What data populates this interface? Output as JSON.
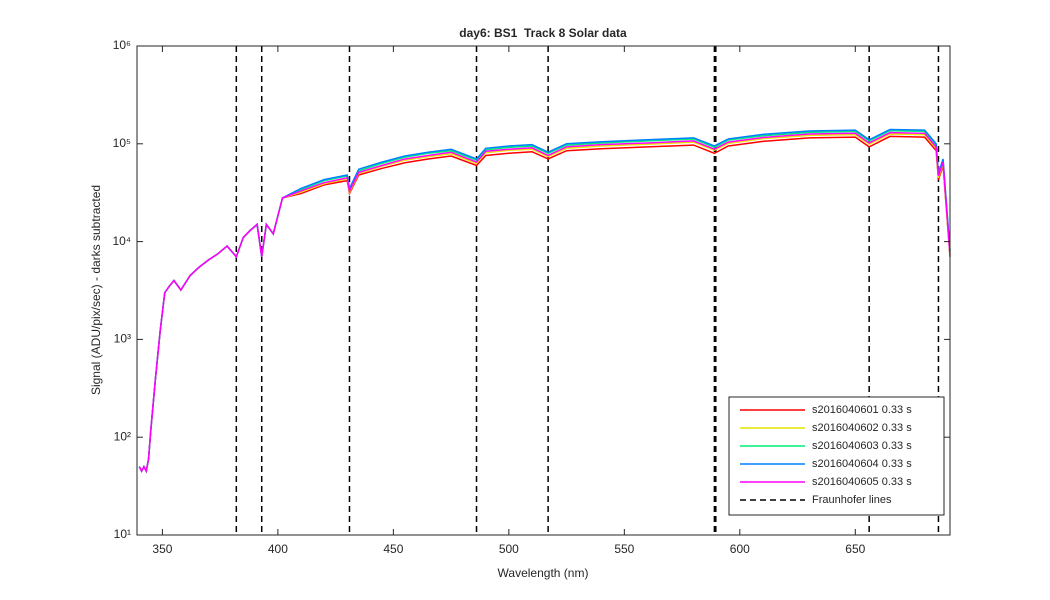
{
  "chart_data": {
    "type": "line",
    "title": "day6: BS1  Track 8 Solar data",
    "xlabel": "Wavelength (nm)",
    "ylabel": "Signal (ADU/pix/sec) - darks subtracted",
    "x": [
      340,
      341,
      342,
      343,
      344,
      345,
      347,
      349,
      351,
      353,
      355,
      358,
      362,
      366,
      370,
      374,
      378,
      382,
      385,
      388,
      391,
      393,
      395,
      398,
      402,
      410,
      420,
      430,
      431,
      435,
      445,
      455,
      465,
      475,
      486,
      490,
      500,
      510,
      517,
      525,
      540,
      560,
      580,
      589,
      595,
      610,
      630,
      650,
      656,
      665,
      680,
      685,
      686,
      688,
      691
    ],
    "series": [
      {
        "name": "s2016040601 0.33 s",
        "color": "#ff0000",
        "values": [
          50,
          45,
          50,
          45,
          60,
          120,
          400,
          1200,
          3000,
          3500,
          4000,
          3200,
          4500,
          5500,
          6500,
          7500,
          9000,
          7000,
          11000,
          13000,
          15000,
          7000,
          15000,
          12000,
          28000,
          31000,
          38000,
          42000,
          31000,
          48000,
          56000,
          64000,
          70000,
          75000,
          60000,
          76000,
          80000,
          83000,
          70000,
          85000,
          89000,
          93000,
          97000,
          80000,
          95000,
          106000,
          115000,
          117000,
          93000,
          119000,
          117000,
          85000,
          43000,
          60000,
          7000
        ]
      },
      {
        "name": "s2016040602 0.33 s",
        "color": "#e6e600",
        "values": [
          50,
          45,
          50,
          45,
          60,
          120,
          400,
          1200,
          3000,
          3500,
          4000,
          3200,
          4500,
          5500,
          6500,
          7500,
          9000,
          7000,
          11000,
          13000,
          15000,
          7000,
          15000,
          12000,
          28000,
          32000,
          39000,
          44000,
          32000,
          50000,
          59000,
          68000,
          74000,
          79000,
          63000,
          81000,
          86000,
          88000,
          74000,
          90000,
          95000,
          99000,
          104000,
          86000,
          101000,
          113000,
          122000,
          124000,
          99000,
          126000,
          124000,
          90000,
          45000,
          63000,
          7200
        ]
      },
      {
        "name": "s2016040603 0.33 s",
        "color": "#00ee77",
        "values": [
          50,
          45,
          50,
          45,
          60,
          120,
          400,
          1200,
          3000,
          3500,
          4000,
          3200,
          4500,
          5500,
          6500,
          7500,
          9000,
          7000,
          11000,
          13000,
          15000,
          7000,
          15000,
          12000,
          28000,
          34000,
          42000,
          47000,
          34000,
          53000,
          63000,
          73000,
          80000,
          85000,
          68000,
          87000,
          92000,
          95000,
          80000,
          97000,
          102000,
          107000,
          112000,
          92000,
          109000,
          121000,
          131000,
          134000,
          107000,
          136000,
          134000,
          97000,
          48000,
          68000,
          7800
        ]
      },
      {
        "name": "s2016040604 0.33 s",
        "color": "#0080ff",
        "values": [
          50,
          45,
          50,
          45,
          60,
          120,
          400,
          1200,
          3000,
          3500,
          4000,
          3200,
          4500,
          5500,
          6500,
          7500,
          9000,
          7000,
          11000,
          13000,
          15000,
          7000,
          15000,
          12000,
          28000,
          35000,
          43000,
          48000,
          35000,
          55000,
          65000,
          75000,
          82000,
          88000,
          70000,
          90000,
          95000,
          98000,
          82000,
          100000,
          105000,
          110000,
          115000,
          95000,
          112000,
          125000,
          135000,
          138000,
          110000,
          140000,
          138000,
          100000,
          50000,
          70000,
          8000
        ]
      },
      {
        "name": "s2016040605 0.33 s",
        "color": "#ff00ff",
        "values": [
          50,
          45,
          50,
          45,
          60,
          120,
          400,
          1200,
          3000,
          3500,
          4000,
          3200,
          4500,
          5500,
          6500,
          7500,
          9000,
          7000,
          11000,
          13000,
          15000,
          7000,
          15000,
          12000,
          28000,
          33000,
          40000,
          45000,
          33000,
          51000,
          60000,
          70000,
          76000,
          82000,
          65000,
          84000,
          88000,
          91000,
          76000,
          93000,
          98000,
          102000,
          107000,
          88000,
          104000,
          116000,
          126000,
          128000,
          102000,
          130000,
          128000,
          93000,
          47000,
          65000,
          7400
        ]
      }
    ],
    "vlines": {
      "name": "Fraunhofer lines",
      "color": "#000000",
      "x": [
        382,
        393,
        431,
        486,
        517,
        589,
        589.6,
        656,
        686
      ]
    },
    "xlim": [
      339,
      691
    ],
    "xticks": [
      350,
      400,
      450,
      500,
      550,
      600,
      650
    ],
    "ylim": [
      10,
      1000000
    ],
    "log_y": true,
    "yticks": [
      {
        "value": 10,
        "label": "10¹"
      },
      {
        "value": 100,
        "label": "10²"
      },
      {
        "value": 1000,
        "label": "10³"
      },
      {
        "value": 10000,
        "label": "10⁴"
      },
      {
        "value": 100000,
        "label": "10⁵"
      },
      {
        "value": 1000000,
        "label": "10⁶"
      }
    ],
    "legend": "lower right"
  }
}
